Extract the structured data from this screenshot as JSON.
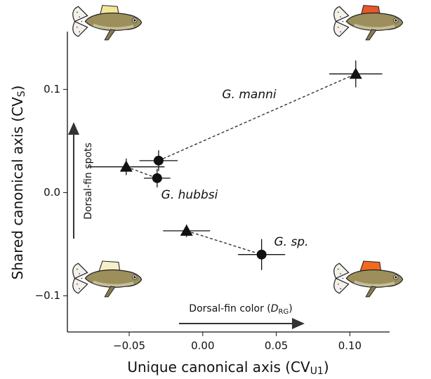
{
  "chart_data": {
    "type": "scatter",
    "x_label": {
      "text": "Unique canonical axis (CV",
      "sub": "U1",
      "end": ")"
    },
    "y_label": {
      "text": "Shared canonical axis (CV",
      "sub": "S",
      "end": ")"
    },
    "annotations": {
      "vertical_arrow": "Dorsal-fin spots",
      "horizontal_arrow": {
        "text": "Dorsal-fin color (",
        "italic": "D",
        "sub": "RG",
        "end": ")"
      }
    },
    "xlim": [
      -0.092,
      0.127
    ],
    "ylim": [
      -0.135,
      0.156
    ],
    "xticks": [
      {
        "value": -0.05,
        "label": "−0.05"
      },
      {
        "value": 0,
        "label": "0.00"
      },
      {
        "value": 0.05,
        "label": "0.05"
      },
      {
        "value": 0.1,
        "label": "0.10"
      }
    ],
    "yticks": [
      {
        "value": -0.1,
        "label": "−0.1"
      },
      {
        "value": 0,
        "label": "0.0"
      },
      {
        "value": 0.1,
        "label": "0.1"
      }
    ],
    "color": "#111111",
    "series": [
      {
        "name": "G. manni",
        "x": [
          -0.03,
          0.104
        ],
        "values": [
          0.031,
          0.115
        ],
        "xerr": [
          0.013,
          0.018
        ],
        "yerr": [
          0.01,
          0.013
        ],
        "markers": [
          "circle",
          "triangle"
        ]
      },
      {
        "name": "G. hubbsi",
        "x": [
          -0.052,
          -0.031
        ],
        "values": [
          0.025,
          0.014
        ],
        "xerr": [
          0.026,
          0.009
        ],
        "yerr": [
          0.008,
          0.009
        ],
        "markers": [
          "triangle",
          "circle"
        ]
      },
      {
        "name": "G. sp.",
        "x": [
          -0.011,
          0.04
        ],
        "values": [
          -0.037,
          -0.06
        ],
        "xerr": [
          0.016,
          0.016
        ],
        "yerr": [
          0.006,
          0.015
        ],
        "markers": [
          "triangle",
          "circle"
        ]
      }
    ]
  }
}
